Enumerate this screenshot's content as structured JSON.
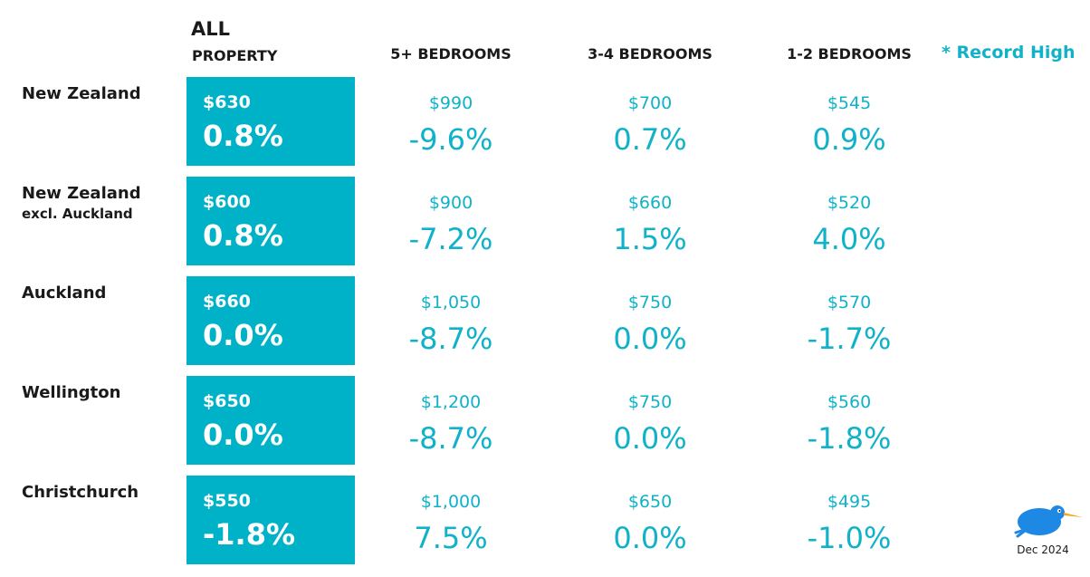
{
  "header": {
    "all_line1": "ALL",
    "all_line2": "PROPERTY",
    "col_5plus": "5+ BEDROOMS",
    "col_3to4": "3-4 BEDROOMS",
    "col_1to2": "1-2 BEDROOMS",
    "record_high": "* Record High"
  },
  "rows": [
    {
      "region": "New Zealand",
      "region_sub": "",
      "all": {
        "price": "$630",
        "change": "0.8%"
      },
      "b5": {
        "price": "$990",
        "change": "-9.6%"
      },
      "b34": {
        "price": "$700",
        "change": "0.7%"
      },
      "b12": {
        "price": "$545",
        "change": "0.9%"
      }
    },
    {
      "region": "New Zealand",
      "region_sub": "excl. Auckland",
      "all": {
        "price": "$600",
        "change": "0.8%"
      },
      "b5": {
        "price": "$900",
        "change": "-7.2%"
      },
      "b34": {
        "price": "$660",
        "change": "1.5%"
      },
      "b12": {
        "price": "$520",
        "change": "4.0%"
      }
    },
    {
      "region": "Auckland",
      "region_sub": "",
      "all": {
        "price": "$660",
        "change": "0.0%"
      },
      "b5": {
        "price": "$1,050",
        "change": "-8.7%"
      },
      "b34": {
        "price": "$750",
        "change": "0.0%"
      },
      "b12": {
        "price": "$570",
        "change": "-1.7%"
      }
    },
    {
      "region": "Wellington",
      "region_sub": "",
      "all": {
        "price": "$650",
        "change": "0.0%"
      },
      "b5": {
        "price": "$1,200",
        "change": "-8.7%"
      },
      "b34": {
        "price": "$750",
        "change": "0.0%"
      },
      "b12": {
        "price": "$560",
        "change": "-1.8%"
      }
    },
    {
      "region": "Christchurch",
      "region_sub": "",
      "all": {
        "price": "$550",
        "change": "-1.8%"
      },
      "b5": {
        "price": "$1,000",
        "change": "7.5%"
      },
      "b34": {
        "price": "$650",
        "change": "0.0%"
      },
      "b12": {
        "price": "$495",
        "change": "-1.0%"
      }
    }
  ],
  "footer": {
    "logo_icon": "kiwi-bird-icon",
    "date": "Dec 2024"
  },
  "colors": {
    "accent": "#00b2c8",
    "text_accent": "#0fb2c8",
    "text_dark": "#1a1a1a",
    "logo_blue": "#1e88e5",
    "logo_beak": "#f5a623"
  }
}
